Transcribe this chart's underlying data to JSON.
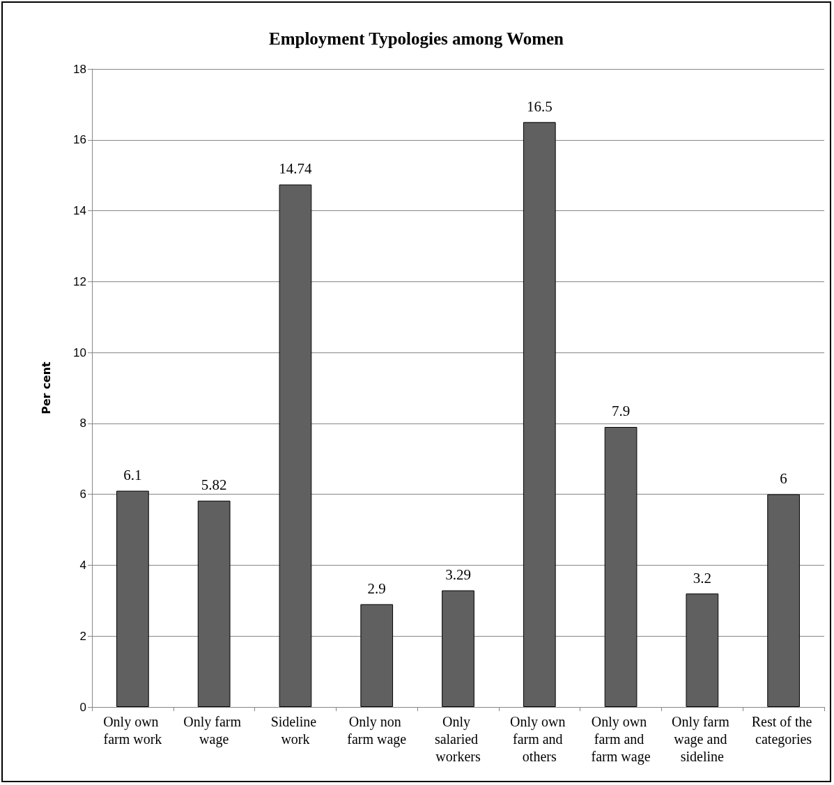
{
  "chart_data": {
    "type": "bar",
    "title": "Employment Typologies among Women",
    "ylabel": "Per cent",
    "categories": [
      "Only own farm work",
      "Only farm wage",
      "Sideline work",
      "Only non farm wage",
      "Only salaried workers",
      "Only own farm and others",
      "Only own farm and farm wage",
      "Only farm wage and sideline",
      "Rest of the categories"
    ],
    "values": [
      6.1,
      5.82,
      14.74,
      2.9,
      3.29,
      16.5,
      7.9,
      3.2,
      6
    ],
    "color": "#606060",
    "ylim": [
      0,
      18
    ],
    "yticks": [
      0,
      2,
      4,
      6,
      8,
      10,
      12,
      14,
      16,
      18
    ],
    "grid": "y",
    "data_labels": true
  }
}
